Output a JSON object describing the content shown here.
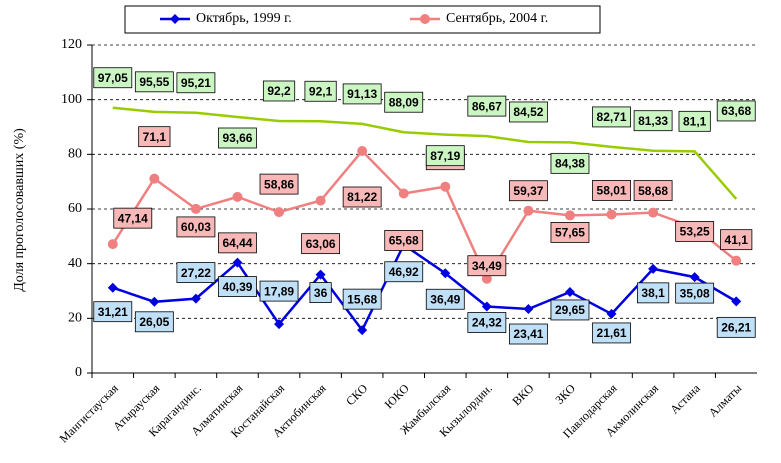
{
  "chart_data": {
    "type": "line",
    "y_label": "Доля проголосовавших (%)",
    "categories": [
      "Мангистауская",
      "Атырауская",
      "Карагандинс.",
      "Алматинская",
      "Костанайская",
      "Актюбинская",
      "СКО",
      "ЮКО",
      "Жамбылская",
      "Кызылордин.",
      "ВКО",
      "ЗКО",
      "Павлодарская",
      "Акмолинская",
      "Астана",
      "Алматы"
    ],
    "series": [
      {
        "name": "Октябрь, 1999 г.",
        "color": "#0000e0",
        "label_color": "#c0e0f8",
        "marker": "diamond",
        "values": [
          31.21,
          26.05,
          27.22,
          40.39,
          17.89,
          36,
          15.68,
          46.92,
          36.49,
          24.32,
          23.41,
          29.65,
          21.61,
          38.1,
          35.08,
          26.21
        ],
        "value_labels": [
          "31,21",
          "26,05",
          "27,22",
          "40,39",
          "17,89",
          "36",
          "15,68",
          "46,92",
          "36,49",
          "24,32",
          "23,41",
          "29,65",
          "21,61",
          "38,1",
          "35,08",
          "26,21"
        ]
      },
      {
        "name": "Сентябрь, 2004 г.",
        "color": "#f08080",
        "label_color": "#f8b8b8",
        "marker": "circle",
        "values": [
          47.14,
          71.1,
          60.03,
          64.44,
          58.86,
          63.06,
          81.22,
          65.68,
          68.16,
          34.49,
          59.37,
          57.65,
          58.01,
          58.68,
          53.25,
          41.1
        ],
        "value_labels": [
          "47,14",
          "71,1",
          "60,03",
          "64,44",
          "58,86",
          "63,06",
          "81,22",
          "65,68",
          "68,16",
          "34,49",
          "59,37",
          "57,65",
          "58,01",
          "58,68",
          "53,25",
          "41,1"
        ]
      },
      {
        "color": "#99cc00",
        "label_color": "#ccf5c4",
        "values": [
          97.05,
          95.55,
          95.21,
          93.66,
          92.2,
          92.1,
          91.13,
          88.09,
          87.19,
          86.67,
          84.52,
          84.38,
          82.71,
          81.33,
          81.1,
          63.68
        ],
        "value_labels": [
          "97,05",
          "95,55",
          "95,21",
          "93,66",
          "92,2",
          "92,1",
          "91,13",
          "88,09",
          "87,19",
          "86,67",
          "84,52",
          "84,38",
          "82,71",
          "81,33",
          "81,1",
          "63,68"
        ]
      }
    ],
    "ylim": [
      0,
      120
    ],
    "yticks": [
      0,
      20,
      40,
      60,
      80,
      100,
      120
    ]
  }
}
